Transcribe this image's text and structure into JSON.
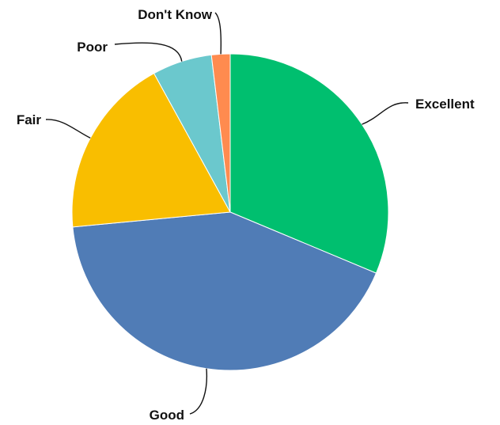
{
  "chart_data": {
    "type": "pie",
    "title": "",
    "start_angle_deg": 0,
    "direction": "clockwise",
    "slices": [
      {
        "label": "Excellent",
        "value": 31.3,
        "color": "#00BF6F"
      },
      {
        "label": "Good",
        "value": 42.2,
        "color": "#507CB6"
      },
      {
        "label": "Fair",
        "value": 18.5,
        "color": "#F9BE00"
      },
      {
        "label": "Poor",
        "value": 6.1,
        "color": "#6BC8CD"
      },
      {
        "label": "Don't Know",
        "value": 1.9,
        "color": "#FF8B4F"
      }
    ],
    "legend": "none",
    "labels": "outside-with-leader-lines"
  }
}
